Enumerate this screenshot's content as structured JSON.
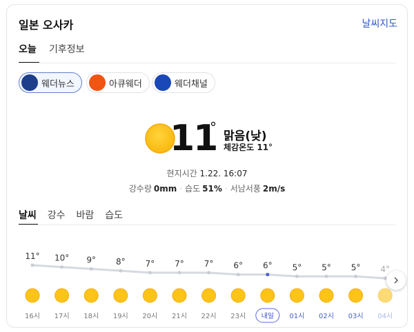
{
  "header": {
    "title": "일본 오사카",
    "map_link": "날씨지도"
  },
  "tabs": [
    "오늘",
    "기후정보"
  ],
  "sources": [
    "웨더뉴스",
    "아큐웨더",
    "웨더채널"
  ],
  "current": {
    "temp": "11",
    "degree": "°",
    "condition": "맑음(낮)",
    "feels_like": "체감온도 11°",
    "local_time_label": "현지시간",
    "local_time": "1.22. 16:07",
    "stats": [
      {
        "label": "강수량",
        "value": "0mm"
      },
      {
        "label": "습도",
        "value": "51%"
      },
      {
        "label": "서남서풍",
        "value": "2m/s"
      }
    ]
  },
  "detail_tabs": [
    "날씨",
    "강수",
    "바람",
    "습도"
  ],
  "hourly": {
    "times": [
      "16시",
      "17시",
      "18시",
      "19시",
      "20시",
      "21시",
      "22시",
      "23시",
      "내일",
      "01시",
      "02시",
      "03시",
      "04시"
    ],
    "temps": [
      11,
      10,
      9,
      8,
      7,
      7,
      7,
      6,
      6,
      5,
      5,
      5,
      4
    ],
    "temp_labels": [
      "11°",
      "10°",
      "9°",
      "8°",
      "7°",
      "7°",
      "7°",
      "6°",
      "6°",
      "5°",
      "5°",
      "5°",
      "4°"
    ]
  }
}
